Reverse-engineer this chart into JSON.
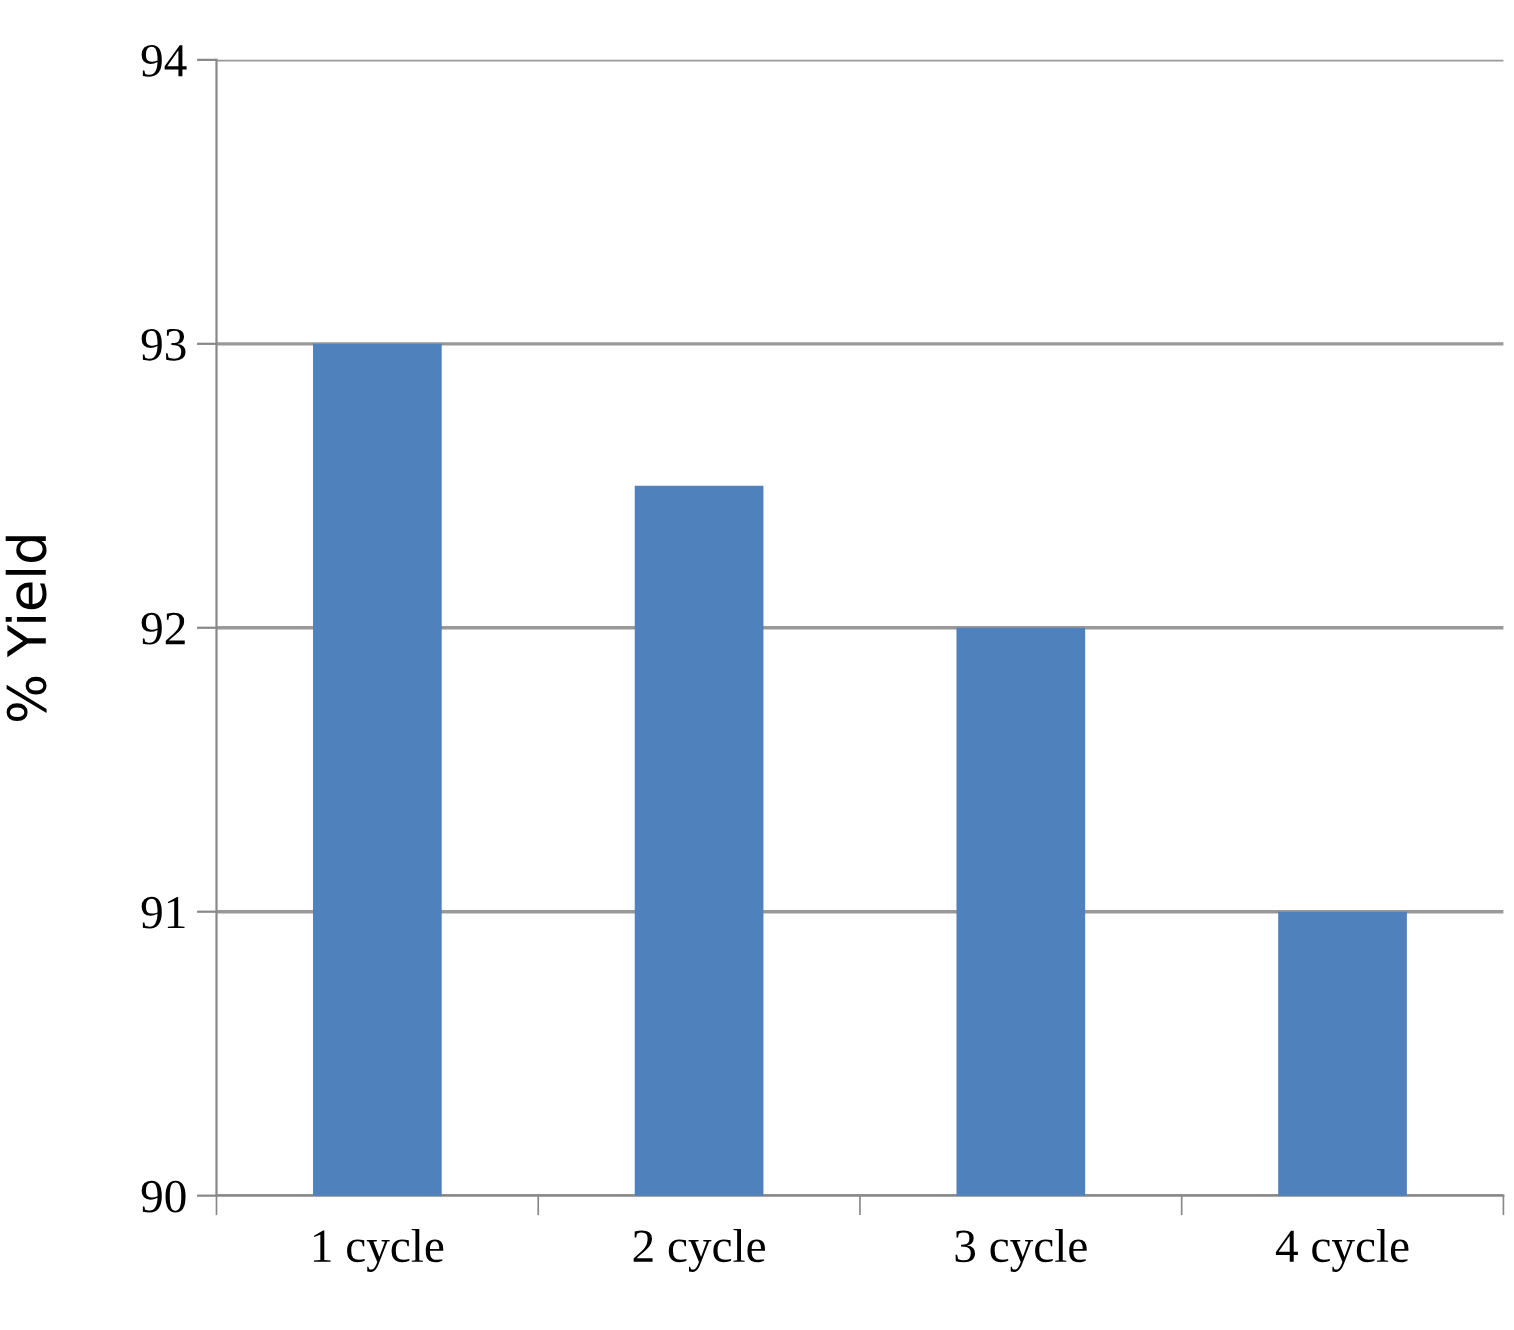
{
  "chart_data": {
    "type": "bar",
    "ylabel": "% Yield",
    "categories": [
      "1 cycle",
      "2 cycle",
      "3 cycle",
      "4 cycle"
    ],
    "values": [
      93,
      92.5,
      92,
      91
    ],
    "color": "#4f81bd",
    "ylim": [
      90,
      94
    ],
    "yticks": [
      90,
      91,
      92,
      93,
      94
    ],
    "grid": "y",
    "legend": false
  }
}
